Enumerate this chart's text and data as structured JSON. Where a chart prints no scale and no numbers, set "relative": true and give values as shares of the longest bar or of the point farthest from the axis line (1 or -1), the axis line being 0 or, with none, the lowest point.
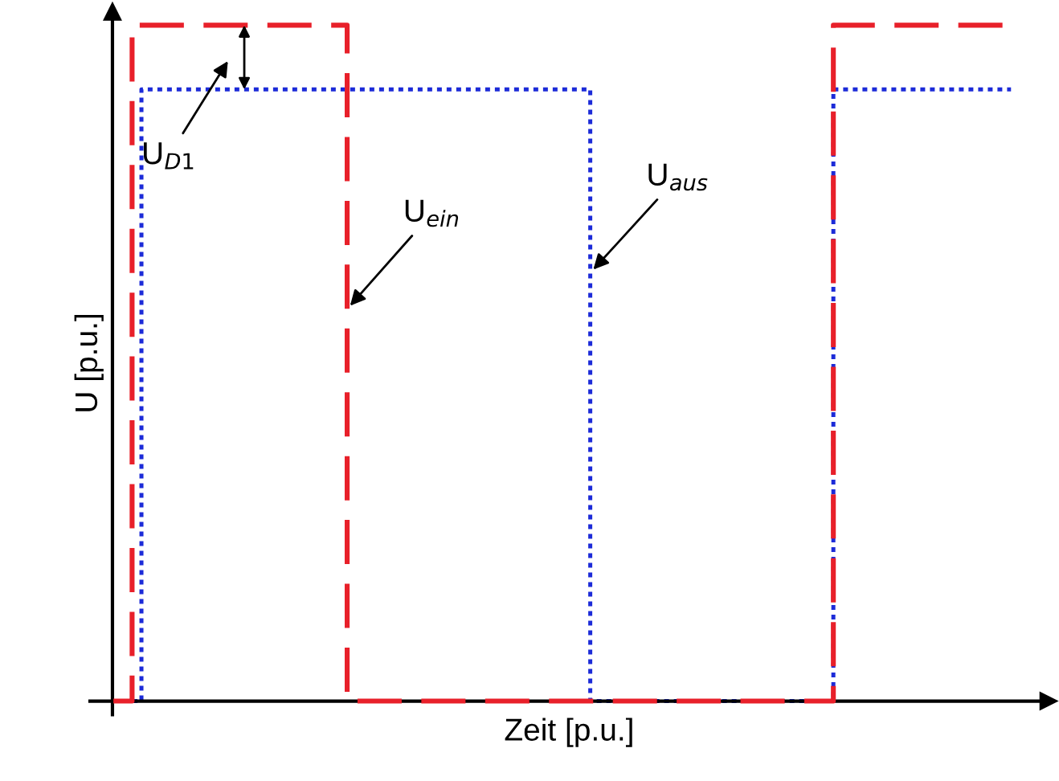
{
  "chart_data": {
    "type": "step",
    "xlabel": "Zeit [p.u.]",
    "ylabel": "U [p.u.]",
    "relative": true,
    "categories": [
      null,
      null,
      null,
      null,
      null,
      null,
      null,
      null,
      null,
      null,
      null,
      null,
      null,
      null,
      null,
      null,
      null,
      null,
      null,
      null,
      null,
      null,
      null,
      null,
      null,
      null,
      null,
      null,
      null,
      null,
      null,
      null,
      null,
      null,
      null,
      null,
      null,
      null,
      null,
      null,
      null,
      null,
      null,
      null,
      null,
      null,
      null,
      null,
      null,
      null,
      null,
      null,
      null,
      null,
      null,
      null,
      null,
      null,
      null,
      null,
      null,
      null,
      null,
      null,
      null,
      null,
      null,
      null,
      null,
      null,
      null,
      null,
      null,
      null,
      null,
      null,
      null,
      null,
      null,
      null,
      null,
      null,
      null,
      null,
      null,
      null,
      null,
      null,
      null,
      null,
      null,
      null,
      null,
      null,
      null,
      null,
      null
    ],
    "series": [
      {
        "name": "U$_{ein}$",
        "color": "#e8202a",
        "line_style": "dashed",
        "values": [
          0,
          0,
          1,
          1,
          1,
          1,
          1,
          1,
          1,
          1,
          1,
          1,
          1,
          1,
          1,
          1,
          1,
          1,
          1,
          1,
          1,
          1,
          1,
          1,
          1,
          0,
          0,
          0,
          0,
          0,
          0,
          0,
          0,
          0,
          0,
          0,
          0,
          0,
          0,
          0,
          0,
          0,
          0,
          0,
          0,
          0,
          0,
          0,
          0,
          0,
          0,
          0,
          0,
          0,
          0,
          0,
          0,
          0,
          0,
          0,
          0,
          0,
          0,
          0,
          0,
          0,
          0,
          0,
          0,
          0,
          0,
          0,
          0,
          0,
          0,
          0,
          0,
          1,
          1,
          1,
          1,
          1,
          1,
          1,
          1,
          1,
          1,
          1,
          1,
          1,
          1,
          1,
          1,
          1,
          1,
          1,
          1
        ]
      },
      {
        "name": "U$_{aus}$",
        "color": "#1c2bd8",
        "line_style": "dotted",
        "values": [
          0,
          0,
          0,
          0.905,
          0.905,
          0.905,
          0.905,
          0.905,
          0.905,
          0.905,
          0.905,
          0.905,
          0.905,
          0.905,
          0.905,
          0.905,
          0.905,
          0.905,
          0.905,
          0.905,
          0.905,
          0.905,
          0.905,
          0.905,
          0.905,
          0.905,
          0.905,
          0.905,
          0.905,
          0.905,
          0.905,
          0.905,
          0.905,
          0.905,
          0.905,
          0.905,
          0.905,
          0.905,
          0.905,
          0.905,
          0.905,
          0.905,
          0.905,
          0.905,
          0.905,
          0.905,
          0.905,
          0.905,
          0.905,
          0.905,
          0.905,
          0,
          0,
          0,
          0,
          0,
          0,
          0,
          0,
          0,
          0,
          0,
          0,
          0,
          0,
          0,
          0,
          0,
          0,
          0,
          0,
          0,
          0,
          0,
          0,
          0,
          0,
          0.905,
          0.905,
          0.905,
          0.905,
          0.905,
          0.905,
          0.905,
          0.905,
          0.905,
          0.905,
          0.905,
          0.905,
          0.905,
          0.905,
          0.905,
          0.905,
          0.905,
          0.905,
          0.905,
          0.905
        ]
      }
    ],
    "annotations": [
      "U$_{D1}$"
    ]
  }
}
